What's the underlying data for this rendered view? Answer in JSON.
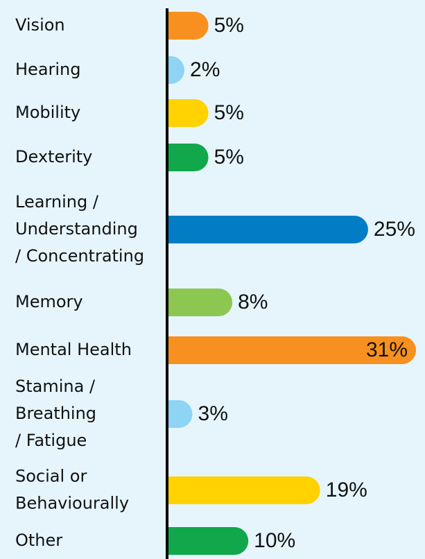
{
  "chart_data": {
    "type": "bar",
    "orientation": "horizontal",
    "categories": [
      "Vision",
      "Hearing",
      "Mobility",
      "Dexterity",
      "Learning /\nUnderstanding\n/ Concentrating",
      "Memory",
      "Mental Health",
      "Stamina /\nBreathing\n/ Fatigue",
      "Social or\nBehaviourally",
      "Other"
    ],
    "values": [
      5,
      2,
      5,
      5,
      25,
      8,
      31,
      3,
      19,
      10
    ],
    "value_labels": [
      "5%",
      "2%",
      "5%",
      "5%",
      "25%",
      "8%",
      "31%",
      "3%",
      "19%",
      "10%"
    ],
    "colors": [
      "#f7901e",
      "#8fd3f5",
      "#ffd200",
      "#10a84b",
      "#007dc5",
      "#8cc751",
      "#f7901e",
      "#8fd3f5",
      "#ffd200",
      "#10a84b"
    ]
  }
}
